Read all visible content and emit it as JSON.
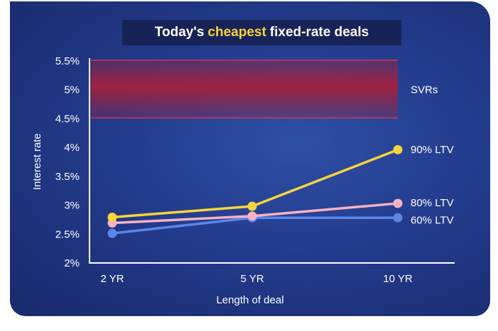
{
  "title": {
    "prefix": "Today's",
    "highlight": "cheapest",
    "suffix": "fixed-rate deals"
  },
  "colors": {
    "background": "#233b8c",
    "title_box": "#172357",
    "highlight": "#f7d53c",
    "svr_band": "#a5203a"
  },
  "chart_data": {
    "type": "line",
    "categories": [
      "2 YR",
      "5 YR",
      "10 YR"
    ],
    "xlabel": "Length of deal",
    "ylabel": "Interest rate",
    "ylim": [
      2,
      5.5
    ],
    "yticks": [
      "2%",
      "2.5%",
      "3%",
      "3.5%",
      "4%",
      "4.5%",
      "5%",
      "5.5%"
    ],
    "grid": false,
    "band": {
      "name": "SVRs",
      "from": 4.5,
      "to": 5.5,
      "color": "#a5203a"
    },
    "series": [
      {
        "name": "90% LTV",
        "values": [
          2.78,
          2.97,
          3.95
        ],
        "color": "#f7d53c"
      },
      {
        "name": "80% LTV",
        "values": [
          2.68,
          2.8,
          3.02
        ],
        "color": "#f5b3c2"
      },
      {
        "name": "60% LTV",
        "values": [
          2.5,
          2.77,
          2.77
        ],
        "color": "#5b86e8"
      }
    ]
  }
}
